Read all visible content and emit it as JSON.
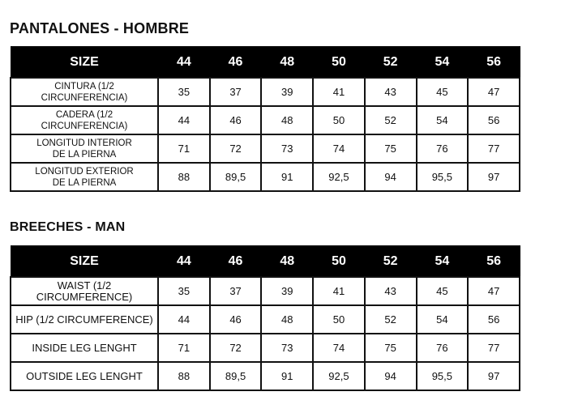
{
  "tables": [
    {
      "title": "PANTALONES - HOMBRE",
      "header": [
        "SIZE",
        "44",
        "46",
        "48",
        "50",
        "52",
        "54",
        "56"
      ],
      "rows": [
        {
          "label": "CINTURA (1/2 CIRCUNFERENCIA)",
          "values": [
            "35",
            "37",
            "39",
            "41",
            "43",
            "45",
            "47"
          ]
        },
        {
          "label": "CADERA (1/2 CIRCUNFERENCIA)",
          "values": [
            "44",
            "46",
            "48",
            "50",
            "52",
            "54",
            "56"
          ]
        },
        {
          "label": "LONGITUD INTERIOR\nDE LA PIERNA",
          "values": [
            "71",
            "72",
            "73",
            "74",
            "75",
            "76",
            "77"
          ]
        },
        {
          "label": "LONGITUD EXTERIOR\nDE LA PIERNA",
          "values": [
            "88",
            "89,5",
            "91",
            "92,5",
            "94",
            "95,5",
            "97"
          ]
        }
      ]
    },
    {
      "title": "BREECHES - MAN",
      "header": [
        "SIZE",
        "44",
        "46",
        "48",
        "50",
        "52",
        "54",
        "56"
      ],
      "rows": [
        {
          "label": "WAIST (1/2 CIRCUMFERENCE)",
          "values": [
            "35",
            "37",
            "39",
            "41",
            "43",
            "45",
            "47"
          ]
        },
        {
          "label": "HIP (1/2 CIRCUMFERENCE)",
          "values": [
            "44",
            "46",
            "48",
            "50",
            "52",
            "54",
            "56"
          ]
        },
        {
          "label": "INSIDE LEG LENGHT",
          "values": [
            "71",
            "72",
            "73",
            "74",
            "75",
            "76",
            "77"
          ]
        },
        {
          "label": "OUTSIDE LEG LENGHT",
          "values": [
            "88",
            "89,5",
            "91",
            "92,5",
            "94",
            "95,5",
            "97"
          ]
        }
      ]
    }
  ]
}
